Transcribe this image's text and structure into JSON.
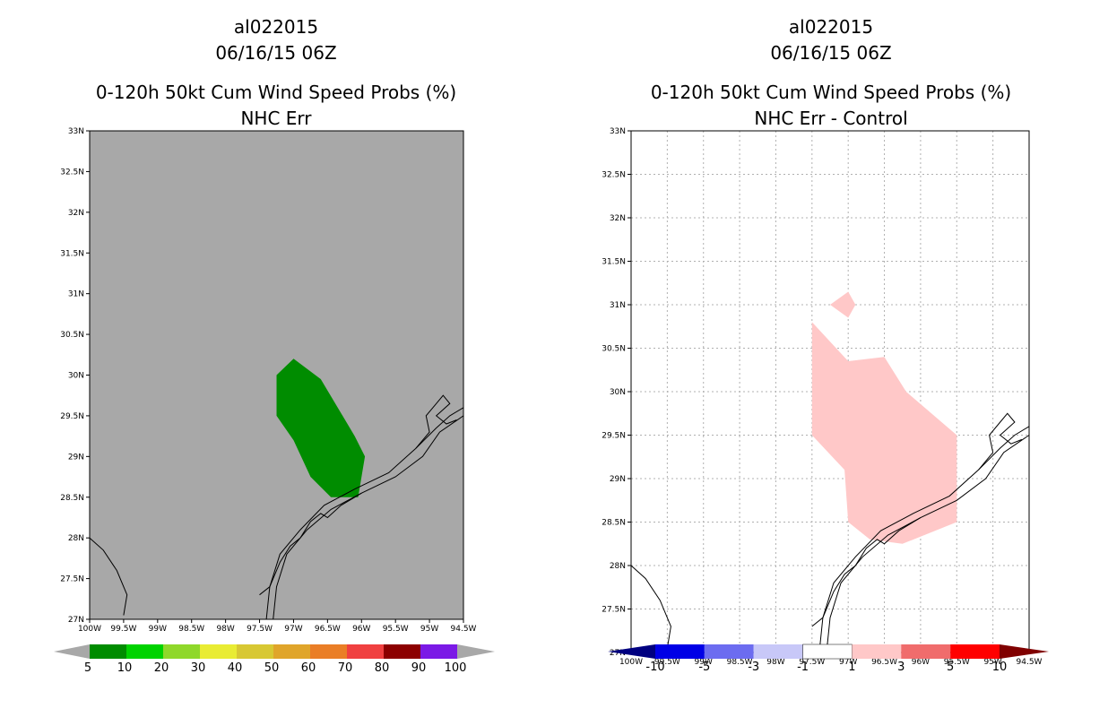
{
  "left": {
    "title": [
      "al022015",
      "06/16/15 06Z",
      "0-120h 50kt Cum Wind Speed Probs (%)",
      "NHC Err"
    ],
    "xticks": [
      "100W",
      "99.5W",
      "99W",
      "98.5W",
      "98W",
      "97.5W",
      "97W",
      "96.5W",
      "96W",
      "95.5W",
      "95W",
      "94.5W"
    ],
    "yticks": [
      "27N",
      "27.5N",
      "28N",
      "28.5N",
      "29N",
      "29.5N",
      "30N",
      "30.5N",
      "31N",
      "31.5N",
      "32N",
      "32.5N",
      "33N"
    ],
    "colorbar_labels": [
      "5",
      "10",
      "20",
      "30",
      "40",
      "50",
      "60",
      "70",
      "80",
      "90",
      "100"
    ],
    "colorbar_colors": [
      "#008c00",
      "#00d300",
      "#8fd82a",
      "#e9ec33",
      "#d8c833",
      "#e0a52a",
      "#ea7e26",
      "#f04040",
      "#8c0000",
      "#7b1ae6"
    ],
    "colors": {
      "background": "#a8a8a8",
      "arrow": "#a8a8a8",
      "prob_fill": "#008c00"
    }
  },
  "right": {
    "title": [
      "al022015",
      "06/16/15 06Z",
      "0-120h 50kt Cum Wind Speed Probs (%)",
      "NHC Err - Control"
    ],
    "xticks": [
      "100W",
      "99.5W",
      "99W",
      "98.5W",
      "98W",
      "97.5W",
      "97W",
      "96.5W",
      "96W",
      "95.5W",
      "95W",
      "94.5W"
    ],
    "yticks": [
      "27N",
      "27.5N",
      "28N",
      "28.5N",
      "29N",
      "29.5N",
      "30N",
      "30.5N",
      "31N",
      "31.5N",
      "32N",
      "32.5N",
      "33N"
    ],
    "colorbar_labels": [
      "-10",
      "-5",
      "-3",
      "-1",
      "1",
      "3",
      "5",
      "10"
    ],
    "colorbar_colors": [
      "#0000e6",
      "#6c6cf0",
      "#c8c8f8",
      "#ffffff",
      "#ffc8c8",
      "#f06c6c",
      "#ff0000"
    ],
    "colors": {
      "background": "#ffffff",
      "arrow_low": "#000080",
      "arrow_high": "#800000",
      "diff_fill": "#ffc8c8",
      "grid": "#b0b0b0"
    }
  },
  "chart_data": [
    {
      "type": "heatmap",
      "title": "0-120h 50kt Cum Wind Speed Probs (%) NHC Err",
      "xlim": [
        -100,
        -94.5
      ],
      "ylim": [
        27,
        33
      ],
      "xlabel": "",
      "ylabel": "",
      "legend": [
        "5",
        "10",
        "20",
        "30",
        "40",
        "50",
        "60",
        "70",
        "80",
        "90",
        "100"
      ],
      "regions": [
        {
          "name": "prob-5-10",
          "level": "5-10",
          "lon": [
            -97.25,
            -97.0,
            -96.6,
            -96.1,
            -95.95,
            -96.05,
            -96.45,
            -96.75,
            -97.0,
            -97.25
          ],
          "lat": [
            30.0,
            30.2,
            29.95,
            29.25,
            29.0,
            28.5,
            28.5,
            28.75,
            29.2,
            29.5
          ]
        }
      ]
    },
    {
      "type": "heatmap",
      "title": "0-120h 50kt Cum Wind Speed Probs (%) NHC Err - Control",
      "xlim": [
        -100,
        -94.5
      ],
      "ylim": [
        27,
        33
      ],
      "xlabel": "",
      "ylabel": "",
      "legend": [
        "-10",
        "-5",
        "-3",
        "-1",
        "1",
        "3",
        "5",
        "10"
      ],
      "regions": [
        {
          "name": "diff-1-3-north",
          "level": "1-3",
          "lon": [
            -97.25,
            -97.0,
            -96.9,
            -97.0,
            -97.25
          ],
          "lat": [
            31.0,
            31.15,
            31.0,
            30.85,
            31.0
          ]
        },
        {
          "name": "diff-1-3-main",
          "level": "1-3",
          "lon": [
            -97.5,
            -97.5,
            -97.0,
            -96.5,
            -96.2,
            -95.5,
            -95.5,
            -96.25,
            -96.7,
            -97.0,
            -97.05,
            -97.5
          ],
          "lat": [
            30.5,
            30.8,
            30.35,
            30.4,
            30.0,
            29.5,
            28.5,
            28.25,
            28.3,
            28.5,
            29.1,
            29.5
          ]
        }
      ]
    }
  ]
}
